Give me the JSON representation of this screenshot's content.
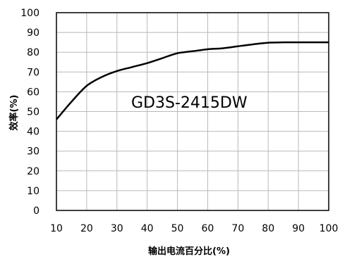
{
  "chart_data": {
    "type": "line",
    "title": "",
    "xlabel": "输出电流百分比(%)",
    "ylabel": "效率(%)",
    "xlim": [
      10,
      100
    ],
    "ylim": [
      0,
      100
    ],
    "grid": true,
    "x_ticks": [
      "10",
      "20",
      "30",
      "40",
      "50",
      "60",
      "70",
      "80",
      "90",
      "100"
    ],
    "y_ticks": [
      "0",
      "10",
      "20",
      "30",
      "40",
      "50",
      "60",
      "70",
      "80",
      "90",
      "100"
    ],
    "annotation": "GD3S-2415DW",
    "series": [
      {
        "x": [
          10,
          15,
          20,
          25,
          30,
          35,
          40,
          45,
          50,
          55,
          60,
          65,
          70,
          75,
          80,
          85,
          90,
          95,
          100
        ],
        "values": [
          46,
          55,
          63,
          67.5,
          70.5,
          72.5,
          74.5,
          77,
          79.5,
          80.5,
          81.5,
          82,
          83,
          84,
          84.8,
          85,
          85,
          85,
          85
        ],
        "color": "#000000"
      }
    ]
  }
}
